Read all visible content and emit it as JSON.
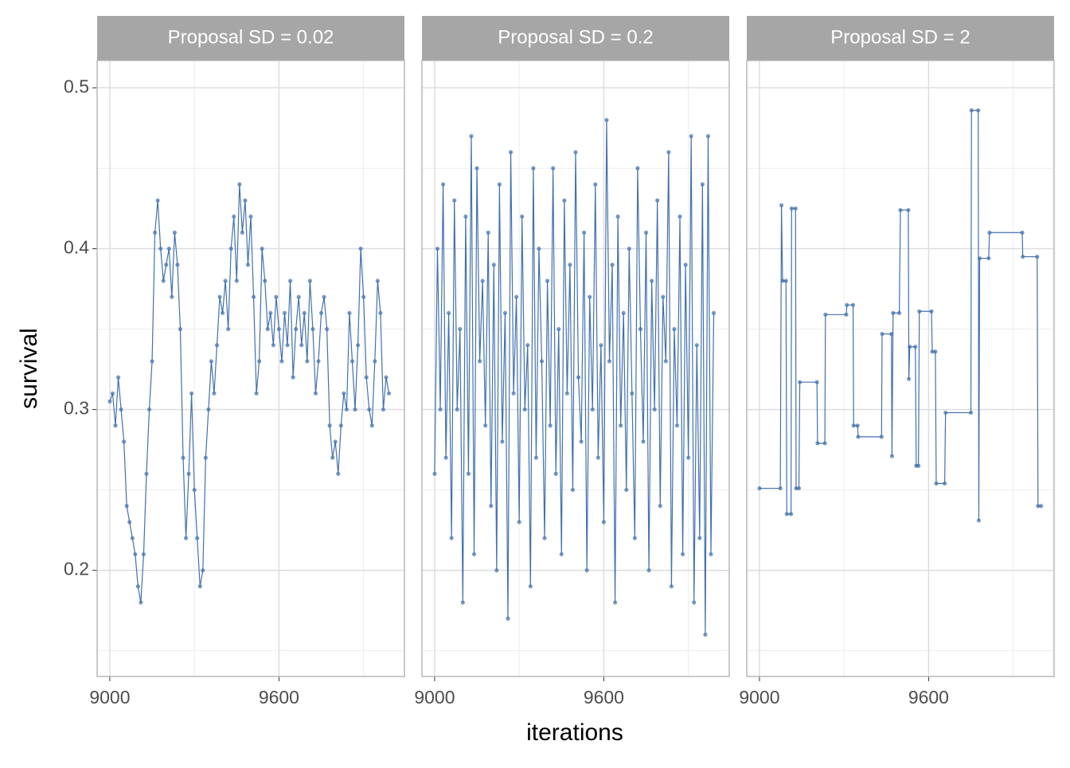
{
  "chart_data": [
    {
      "type": "line",
      "title": "Proposal SD = 0.02",
      "y_label": "survival",
      "color": "#4271ad",
      "grid": true,
      "xlim": [
        8955,
        10045
      ],
      "ylim": [
        0.134,
        0.517
      ],
      "xticks": [
        9000,
        9600
      ],
      "yticks": [
        0.2,
        0.3,
        0.4,
        0.5
      ],
      "xminor": [
        9300,
        9900
      ],
      "yminor": [
        0.15,
        0.25,
        0.35,
        0.45
      ],
      "x": [
        9000,
        9010,
        9020,
        9030,
        9040,
        9050,
        9060,
        9070,
        9080,
        9090,
        9100,
        9110,
        9120,
        9130,
        9140,
        9150,
        9160,
        9170,
        9180,
        9190,
        9200,
        9210,
        9220,
        9230,
        9240,
        9250,
        9260,
        9270,
        9280,
        9290,
        9300,
        9310,
        9320,
        9330,
        9340,
        9350,
        9360,
        9370,
        9380,
        9390,
        9400,
        9410,
        9420,
        9430,
        9440,
        9450,
        9460,
        9470,
        9480,
        9490,
        9500,
        9510,
        9520,
        9530,
        9540,
        9550,
        9560,
        9570,
        9580,
        9590,
        9600,
        9610,
        9620,
        9630,
        9640,
        9650,
        9660,
        9670,
        9680,
        9690,
        9700,
        9710,
        9720,
        9730,
        9740,
        9750,
        9760,
        9770,
        9780,
        9790,
        9800,
        9810,
        9820,
        9830,
        9840,
        9850,
        9860,
        9870,
        9880,
        9890,
        9900,
        9910,
        9920,
        9930,
        9940,
        9950,
        9960,
        9970,
        9980,
        9990
      ],
      "values": [
        0.305,
        0.31,
        0.29,
        0.32,
        0.3,
        0.28,
        0.24,
        0.23,
        0.22,
        0.21,
        0.19,
        0.18,
        0.21,
        0.26,
        0.3,
        0.33,
        0.41,
        0.43,
        0.4,
        0.38,
        0.39,
        0.4,
        0.37,
        0.41,
        0.39,
        0.35,
        0.27,
        0.22,
        0.26,
        0.31,
        0.25,
        0.22,
        0.19,
        0.2,
        0.27,
        0.3,
        0.33,
        0.31,
        0.34,
        0.37,
        0.36,
        0.38,
        0.35,
        0.4,
        0.42,
        0.38,
        0.44,
        0.41,
        0.43,
        0.39,
        0.42,
        0.37,
        0.31,
        0.33,
        0.4,
        0.38,
        0.35,
        0.36,
        0.34,
        0.37,
        0.35,
        0.33,
        0.36,
        0.34,
        0.38,
        0.32,
        0.35,
        0.37,
        0.34,
        0.36,
        0.33,
        0.38,
        0.35,
        0.31,
        0.33,
        0.36,
        0.37,
        0.35,
        0.29,
        0.27,
        0.28,
        0.26,
        0.29,
        0.31,
        0.3,
        0.36,
        0.33,
        0.3,
        0.34,
        0.4,
        0.37,
        0.32,
        0.3,
        0.29,
        0.33,
        0.38,
        0.36,
        0.3,
        0.32,
        0.31
      ]
    },
    {
      "type": "line",
      "title": "Proposal SD = 0.2",
      "x_label": "iterations",
      "color": "#4271ad",
      "grid": true,
      "xlim": [
        8955,
        10045
      ],
      "ylim": [
        0.134,
        0.517
      ],
      "xticks": [
        9000,
        9600
      ],
      "yticks": [
        0.2,
        0.3,
        0.4,
        0.5
      ],
      "xminor": [
        9300,
        9900
      ],
      "yminor": [
        0.15,
        0.25,
        0.35,
        0.45
      ],
      "x": [
        9000,
        9010,
        9020,
        9030,
        9040,
        9050,
        9060,
        9070,
        9080,
        9090,
        9100,
        9110,
        9120,
        9130,
        9140,
        9150,
        9160,
        9170,
        9180,
        9190,
        9200,
        9210,
        9220,
        9230,
        9240,
        9250,
        9260,
        9270,
        9280,
        9290,
        9300,
        9310,
        9320,
        9330,
        9340,
        9350,
        9360,
        9370,
        9380,
        9390,
        9400,
        9410,
        9420,
        9430,
        9440,
        9450,
        9460,
        9470,
        9480,
        9490,
        9500,
        9510,
        9520,
        9530,
        9540,
        9550,
        9560,
        9570,
        9580,
        9590,
        9600,
        9610,
        9620,
        9630,
        9640,
        9650,
        9660,
        9670,
        9680,
        9690,
        9700,
        9710,
        9720,
        9730,
        9740,
        9750,
        9760,
        9770,
        9780,
        9790,
        9800,
        9810,
        9820,
        9830,
        9840,
        9850,
        9860,
        9870,
        9880,
        9890,
        9900,
        9910,
        9920,
        9930,
        9940,
        9950,
        9960,
        9970,
        9980,
        9990
      ],
      "values": [
        0.26,
        0.4,
        0.3,
        0.44,
        0.27,
        0.36,
        0.22,
        0.43,
        0.3,
        0.35,
        0.18,
        0.42,
        0.26,
        0.47,
        0.21,
        0.45,
        0.33,
        0.38,
        0.29,
        0.41,
        0.24,
        0.39,
        0.2,
        0.44,
        0.28,
        0.36,
        0.17,
        0.46,
        0.31,
        0.37,
        0.23,
        0.42,
        0.3,
        0.34,
        0.19,
        0.45,
        0.27,
        0.4,
        0.33,
        0.22,
        0.38,
        0.29,
        0.45,
        0.26,
        0.35,
        0.21,
        0.43,
        0.31,
        0.39,
        0.25,
        0.46,
        0.32,
        0.28,
        0.41,
        0.2,
        0.37,
        0.3,
        0.44,
        0.27,
        0.34,
        0.23,
        0.48,
        0.33,
        0.39,
        0.18,
        0.42,
        0.29,
        0.36,
        0.25,
        0.4,
        0.31,
        0.22,
        0.45,
        0.35,
        0.28,
        0.41,
        0.2,
        0.38,
        0.3,
        0.43,
        0.24,
        0.37,
        0.33,
        0.46,
        0.19,
        0.35,
        0.29,
        0.42,
        0.21,
        0.39,
        0.27,
        0.47,
        0.18,
        0.34,
        0.22,
        0.44,
        0.16,
        0.47,
        0.21,
        0.36
      ]
    },
    {
      "type": "line",
      "title": "Proposal SD = 2",
      "color": "#4271ad",
      "grid": true,
      "xlim": [
        8955,
        10045
      ],
      "ylim": [
        0.134,
        0.517
      ],
      "xticks": [
        9000,
        9600
      ],
      "yticks": [
        0.2,
        0.3,
        0.4,
        0.5
      ],
      "xminor": [
        9300,
        9900
      ],
      "yminor": [
        0.15,
        0.25,
        0.35,
        0.45
      ],
      "x": [
        9000,
        9074,
        9078,
        9082,
        9094,
        9097,
        9112,
        9114,
        9128,
        9130,
        9140,
        9143,
        9204,
        9206,
        9232,
        9234,
        9308,
        9310,
        9332,
        9334,
        9348,
        9350,
        9433,
        9435,
        9468,
        9470,
        9474,
        9496,
        9500,
        9528,
        9530,
        9533,
        9553,
        9556,
        9564,
        9567,
        9610,
        9613,
        9624,
        9627,
        9657,
        9660,
        9750,
        9752,
        9776,
        9778,
        9781,
        9813,
        9816,
        9932,
        9934,
        9985,
        9988,
        9999
      ],
      "values": [
        0.251,
        0.251,
        0.427,
        0.38,
        0.38,
        0.235,
        0.235,
        0.425,
        0.425,
        0.251,
        0.251,
        0.317,
        0.317,
        0.279,
        0.279,
        0.359,
        0.359,
        0.365,
        0.365,
        0.29,
        0.29,
        0.283,
        0.283,
        0.347,
        0.347,
        0.271,
        0.36,
        0.36,
        0.424,
        0.424,
        0.319,
        0.339,
        0.339,
        0.265,
        0.265,
        0.361,
        0.361,
        0.336,
        0.336,
        0.254,
        0.254,
        0.298,
        0.298,
        0.486,
        0.486,
        0.231,
        0.394,
        0.394,
        0.41,
        0.41,
        0.395,
        0.395,
        0.24,
        0.24
      ]
    }
  ]
}
